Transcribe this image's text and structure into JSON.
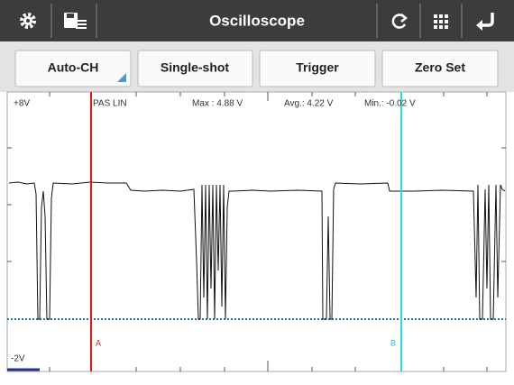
{
  "toolbar": {
    "title": "Oscilloscope"
  },
  "buttons": [
    "Auto-CH",
    "Single-shot",
    "Trigger",
    "Zero Set"
  ],
  "scope": {
    "y_top_label": "+8V",
    "y_bottom_label": "-2V",
    "mode": "PAS LIN",
    "max": "Max : 4.88 V",
    "avg": "Avg.: 4.22 V",
    "min": "Min.: -0.02 V",
    "cursors": [
      "A",
      "B"
    ]
  }
}
